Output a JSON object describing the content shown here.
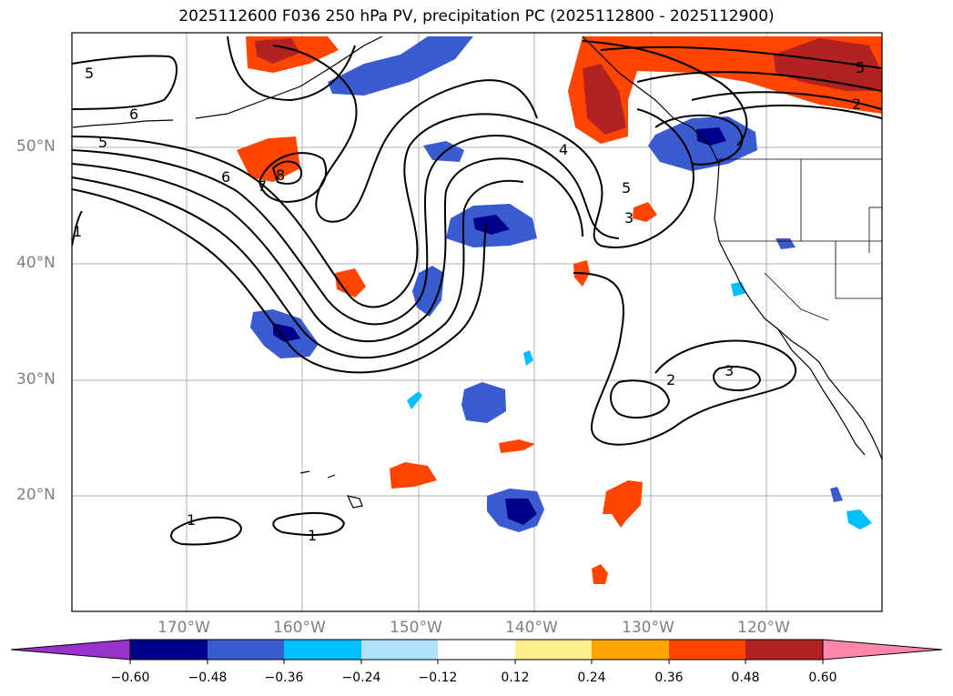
{
  "title": "2025112600 F036 250 hPa PV, precipitation PC (2025112800 - 2025112900)",
  "axes": {
    "lat_labels": [
      "50°N",
      "40°N",
      "30°N",
      "20°N"
    ],
    "lon_labels": [
      "170°W",
      "160°W",
      "150°W",
      "140°W",
      "130°W",
      "120°W"
    ]
  },
  "contour_labels": [
    "5",
    "6",
    "5",
    "6",
    "7",
    "8",
    "4",
    "5",
    "3",
    "5",
    "2",
    "2",
    "3",
    "1",
    "1",
    "1"
  ],
  "colorbar": {
    "tick_labels": [
      "−0.60",
      "−0.48",
      "−0.36",
      "−0.24",
      "−0.12",
      "0.12",
      "0.24",
      "0.36",
      "0.48",
      "0.60"
    ],
    "colors": [
      "#9932CC",
      "#00008B",
      "#3A5BD0",
      "#00BFFF",
      "#ADE2FA",
      "#FFFFFF",
      "#FFEC8B",
      "#FFA500",
      "#FF4500",
      "#B22222",
      "#FF88AA"
    ]
  }
}
